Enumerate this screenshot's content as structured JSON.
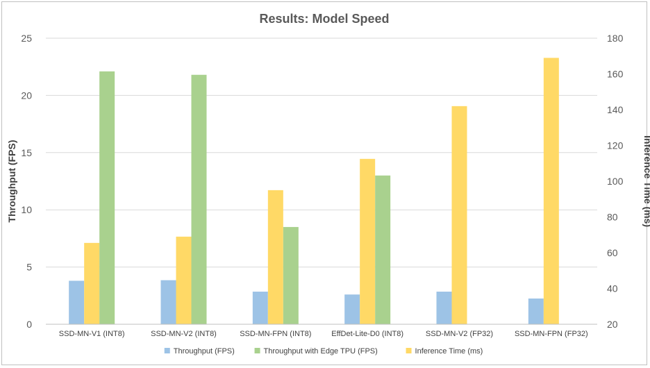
{
  "chart_data": {
    "type": "bar",
    "title": "Results: Model Speed",
    "categories": [
      "SSD-MN-V1 (INT8)",
      "SSD-MN-V2 (INT8)",
      "SSD-MN-FPN (INT8)",
      "EffDet-Lite-D0 (INT8)",
      "SSD-MN-V2 (FP32)",
      "SSD-MN-FPN (FP32)"
    ],
    "series": [
      {
        "name": "Throughput (FPS)",
        "axis": "left",
        "color": "#9dc3e6",
        "values": [
          3.8,
          3.85,
          2.85,
          2.6,
          2.85,
          2.25
        ]
      },
      {
        "name": "Inference Time (ms)",
        "axis": "right",
        "color": "#ffd966",
        "values": [
          65.5,
          69,
          95,
          112.5,
          142,
          169
        ]
      },
      {
        "name": "Throughput with Edge TPU (FPS)",
        "axis": "left",
        "color": "#a9d18e",
        "values": [
          22.1,
          21.8,
          8.5,
          13,
          null,
          null
        ]
      }
    ],
    "legend": [
      "Throughput (FPS)",
      "Throughput with Edge TPU (FPS)",
      "Inference Time (ms)"
    ],
    "legend_position": "bottom",
    "ylabel": "Throughput (FPS)",
    "ylim": [
      0,
      25
    ],
    "yticks": [
      0,
      5,
      10,
      15,
      20,
      25
    ],
    "y2label": "Inference Time (ms)",
    "y2lim": [
      20,
      180
    ],
    "y2ticks": [
      20,
      40,
      60,
      80,
      100,
      120,
      140,
      160,
      180
    ],
    "grid": true
  }
}
